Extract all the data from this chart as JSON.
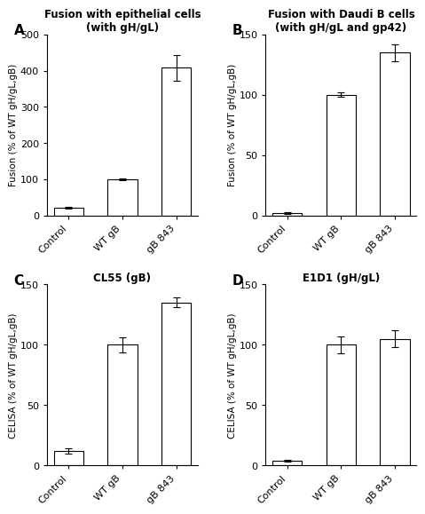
{
  "panel_A": {
    "title": "Fusion with epithelial cells\n(with gH/gL)",
    "ylabel": "Fusion (% of WT gH/gL,gB)",
    "categories": [
      "Control",
      "WT gB",
      "gB 843"
    ],
    "values": [
      22,
      100,
      408
    ],
    "errors": [
      3,
      3,
      35
    ],
    "ylim": [
      0,
      500
    ],
    "yticks": [
      0,
      100,
      200,
      300,
      400,
      500
    ],
    "label": "A"
  },
  "panel_B": {
    "title": "Fusion with Daudi B cells\n(with gH/gL and gp42)",
    "ylabel": "Fusion (% of WT gH/gL,gB)",
    "categories": [
      "Control",
      "WT gB",
      "gB 843"
    ],
    "values": [
      2,
      100,
      135
    ],
    "errors": [
      0.5,
      2,
      7
    ],
    "ylim": [
      0,
      150
    ],
    "yticks": [
      0,
      50,
      100,
      150
    ],
    "label": "B"
  },
  "panel_C": {
    "title": "CL55 (gB)",
    "ylabel": "CELISA (% of WT gH/gL,gB)",
    "categories": [
      "Control",
      "WT gB",
      "gB 843"
    ],
    "values": [
      12,
      100,
      135
    ],
    "errors": [
      2,
      6,
      4
    ],
    "ylim": [
      0,
      150
    ],
    "yticks": [
      0,
      50,
      100,
      150
    ],
    "label": "C"
  },
  "panel_D": {
    "title": "E1D1 (gH/gL)",
    "ylabel": "CELISA (% of WT gH/gL,gB)",
    "categories": [
      "Control",
      "WT gB",
      "gB 843"
    ],
    "values": [
      4,
      100,
      105
    ],
    "errors": [
      0.5,
      7,
      7
    ],
    "ylim": [
      0,
      150
    ],
    "yticks": [
      0,
      50,
      100,
      150
    ],
    "label": "D"
  },
  "bar_color": "white",
  "bar_edgecolor": "black",
  "bar_width": 0.55,
  "title_fontsize": 8.5,
  "label_fontsize": 7.5,
  "tick_fontsize": 8,
  "panel_label_fontsize": 11
}
